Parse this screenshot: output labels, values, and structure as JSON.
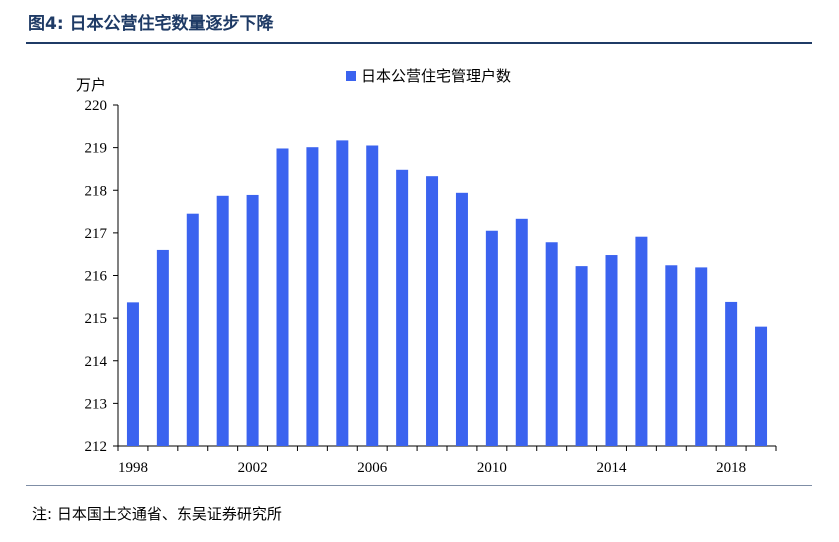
{
  "header": {
    "title": "图4:  日本公营住宅数量逐步下降"
  },
  "footer": {
    "source": "注:  日本国土交通省、东吴证券研究所"
  },
  "colors": {
    "bar": "#3b63ef",
    "title": "#1f3b66"
  },
  "chart_data": {
    "type": "bar",
    "title": "",
    "ylabel": "万户",
    "xlabel": "",
    "ylim": [
      212,
      220
    ],
    "yticks": [
      "212",
      "213",
      "214",
      "215",
      "216",
      "217",
      "218",
      "219",
      "220"
    ],
    "grid": false,
    "legend_position": "top-center",
    "categories": [
      "1998",
      "1999",
      "2000",
      "2001",
      "2002",
      "2003",
      "2004",
      "2005",
      "2006",
      "2007",
      "2008",
      "2009",
      "2010",
      "2011",
      "2012",
      "2013",
      "2014",
      "2015",
      "2016",
      "2017",
      "2018",
      "2019"
    ],
    "xtick_labels": [
      "1998",
      "",
      "",
      "",
      "2002",
      "",
      "",
      "",
      "2006",
      "",
      "",
      "",
      "2010",
      "",
      "",
      "",
      "2014",
      "",
      "",
      "",
      "2018",
      ""
    ],
    "series": [
      {
        "name": "日本公营住宅管理户数",
        "values": [
          215.37,
          216.6,
          217.45,
          217.87,
          217.89,
          218.98,
          219.01,
          219.17,
          219.05,
          218.48,
          218.33,
          217.94,
          217.05,
          217.33,
          216.78,
          216.22,
          216.48,
          216.91,
          216.24,
          216.19,
          215.38,
          214.8
        ]
      }
    ]
  }
}
